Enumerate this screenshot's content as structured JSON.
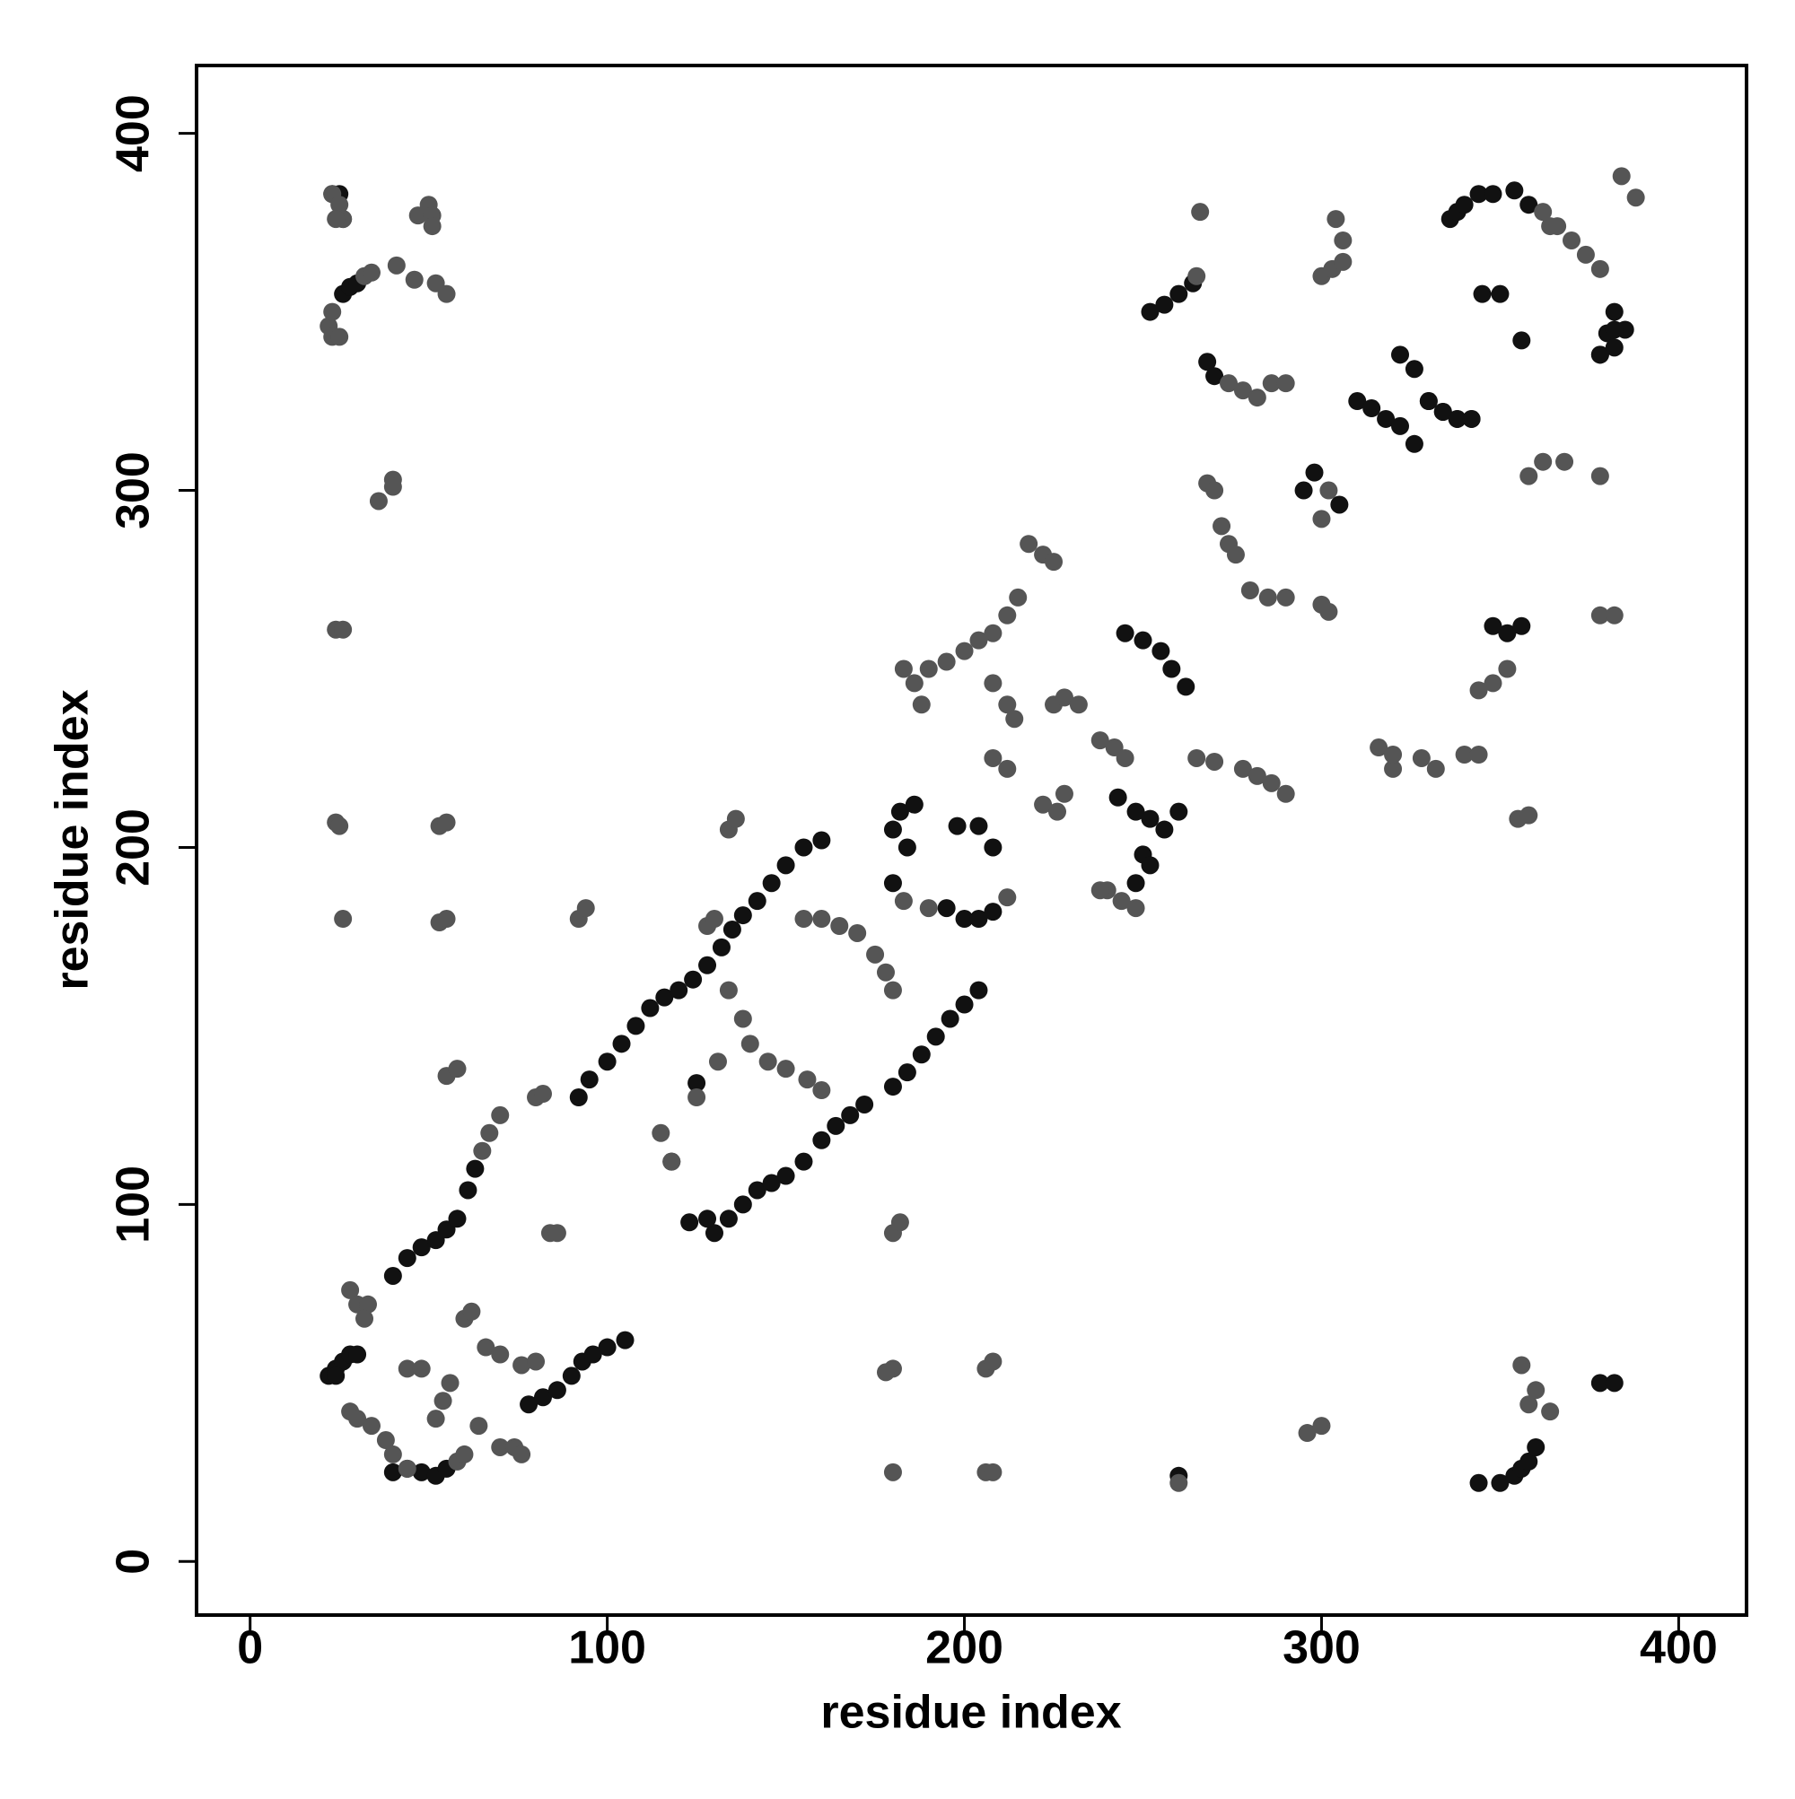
{
  "chart_data": {
    "type": "scatter",
    "x_label": "residue index",
    "y_label": "residue index",
    "xlim": [
      -15,
      419
    ],
    "ylim": [
      -15,
      419
    ],
    "xticks": [
      0,
      100,
      200,
      300,
      400
    ],
    "yticks": [
      0,
      100,
      200,
      300,
      400
    ],
    "series": [
      {
        "color": "#111111",
        "x": [
          22,
          24,
          26,
          28,
          30,
          40,
          44,
          48,
          52,
          55,
          58,
          61,
          63,
          78,
          82,
          86,
          90,
          93,
          96,
          100,
          105,
          92,
          95,
          100,
          104,
          108,
          112,
          116,
          120,
          124,
          128,
          132,
          135,
          138,
          142,
          146,
          150,
          155,
          160,
          130,
          134,
          138,
          142,
          146,
          150,
          155,
          160,
          164,
          168,
          172,
          180,
          184,
          188,
          192,
          196,
          200,
          204,
          180,
          182,
          186,
          184,
          180,
          208,
          204,
          198,
          195,
          200,
          204,
          208,
          243,
          248,
          252,
          256,
          260,
          250,
          252,
          248,
          245,
          250,
          255,
          258,
          262,
          252,
          256,
          260,
          264,
          268,
          270,
          295,
          298,
          305,
          310,
          314,
          318,
          322,
          326,
          330,
          334,
          338,
          342,
          322,
          326,
          330,
          334,
          338,
          342,
          348,
          352,
          356,
          336,
          338,
          340,
          344,
          348,
          354,
          358,
          378,
          380,
          382,
          378,
          382,
          385,
          345,
          350,
          356,
          344,
          350,
          354,
          356,
          358,
          360,
          378,
          382,
          23,
          25,
          26,
          24,
          26,
          28,
          30,
          40,
          44,
          48,
          52,
          55,
          118,
          123,
          128,
          125,
          260,
          382
        ],
        "y": [
          52,
          54,
          56,
          58,
          58,
          80,
          85,
          88,
          90,
          93,
          96,
          104,
          110,
          44,
          46,
          48,
          52,
          56,
          58,
          60,
          62,
          130,
          135,
          140,
          145,
          150,
          155,
          158,
          160,
          163,
          167,
          172,
          177,
          181,
          185,
          190,
          195,
          200,
          202,
          92,
          96,
          100,
          104,
          106,
          108,
          112,
          118,
          122,
          125,
          128,
          133,
          137,
          142,
          147,
          152,
          156,
          160,
          205,
          210,
          212,
          200,
          190,
          200,
          206,
          206,
          183,
          180,
          180,
          182,
          214,
          210,
          208,
          205,
          210,
          198,
          195,
          190,
          260,
          258,
          255,
          250,
          245,
          350,
          352,
          355,
          358,
          336,
          332,
          300,
          305,
          296,
          325,
          323,
          320,
          318,
          313,
          325,
          322,
          320,
          320,
          338,
          334,
          325,
          322,
          320,
          320,
          262,
          260,
          262,
          376,
          378,
          380,
          383,
          383,
          384,
          380,
          338,
          344,
          350,
          338,
          340,
          345,
          355,
          355,
          342,
          22,
          22,
          24,
          26,
          28,
          32,
          50,
          50,
          383,
          383,
          376,
          52,
          355,
          357,
          358,
          25,
          26,
          25,
          24,
          26,
          112,
          95,
          96,
          134,
          24,
          345
        ]
      },
      {
        "color": "#555555",
        "x": [
          23,
          25,
          26,
          24,
          22,
          23,
          25,
          23,
          32,
          34,
          41,
          46,
          52,
          55,
          47,
          50,
          51,
          51,
          40,
          40,
          36,
          24,
          26,
          24,
          25,
          26,
          53,
          55,
          53,
          55,
          65,
          67,
          70,
          115,
          118,
          125,
          131,
          134,
          138,
          140,
          145,
          150,
          156,
          160,
          155,
          160,
          165,
          170,
          175,
          178,
          180,
          183,
          190,
          212,
          186,
          183,
          188,
          190,
          195,
          200,
          204,
          208,
          212,
          215,
          218,
          222,
          225,
          208,
          212,
          214,
          208,
          212,
          222,
          226,
          228,
          225,
          228,
          232,
          238,
          242,
          245,
          270,
          265,
          240,
          238,
          248,
          244,
          266,
          274,
          278,
          282,
          286,
          290,
          265,
          268,
          270,
          272,
          274,
          276,
          280,
          285,
          290,
          302,
          300,
          278,
          282,
          286,
          290,
          300,
          302,
          300,
          303,
          306,
          304,
          306,
          364,
          344,
          348,
          352,
          340,
          344,
          332,
          328,
          316,
          320,
          320,
          362,
          366,
          370,
          374,
          378,
          358,
          362,
          368,
          378,
          378,
          382,
          355,
          358,
          384,
          388,
          128,
          130,
          134,
          136,
          92,
          94,
          55,
          58,
          80,
          82,
          84,
          86,
          358,
          360,
          356,
          364,
          296,
          300,
          260,
          206,
          208,
          180,
          206,
          208,
          180,
          178,
          180,
          182,
          28,
          30,
          34,
          38,
          40,
          44,
          58,
          60,
          70,
          74,
          76,
          64,
          44,
          48,
          52,
          54,
          56,
          60,
          62,
          66,
          70,
          76,
          80,
          28,
          30,
          33,
          32
        ],
        "y": [
          383,
          380,
          376,
          376,
          346,
          343,
          343,
          350,
          360,
          361,
          363,
          359,
          358,
          355,
          377,
          380,
          377,
          374,
          303,
          301,
          297,
          261,
          261,
          207,
          206,
          180,
          206,
          207,
          179,
          180,
          115,
          120,
          125,
          120,
          112,
          130,
          140,
          160,
          152,
          145,
          140,
          138,
          135,
          132,
          180,
          180,
          178,
          176,
          170,
          165,
          160,
          185,
          183,
          186,
          246,
          250,
          240,
          250,
          252,
          255,
          258,
          260,
          265,
          270,
          285,
          282,
          280,
          246,
          240,
          236,
          225,
          222,
          212,
          210,
          215,
          240,
          242,
          240,
          230,
          228,
          225,
          224,
          225,
          188,
          188,
          183,
          185,
          378,
          330,
          328,
          326,
          330,
          330,
          360,
          302,
          300,
          290,
          285,
          282,
          272,
          270,
          270,
          300,
          292,
          222,
          220,
          218,
          215,
          268,
          266,
          360,
          362,
          364,
          376,
          370,
          374,
          244,
          246,
          250,
          226,
          226,
          222,
          225,
          228,
          222,
          226,
          378,
          374,
          370,
          366,
          362,
          304,
          308,
          308,
          304,
          265,
          265,
          208,
          209,
          388,
          382,
          178,
          180,
          205,
          208,
          180,
          183,
          136,
          138,
          130,
          131,
          92,
          92,
          44,
          48,
          55,
          42,
          36,
          38,
          22,
          25,
          25,
          25,
          54,
          56,
          54,
          53,
          92,
          95,
          42,
          40,
          38,
          34,
          30,
          26,
          28,
          30,
          32,
          32,
          30,
          38,
          54,
          54,
          40,
          45,
          50,
          68,
          70,
          60,
          58,
          55,
          56,
          76,
          72,
          72,
          68
        ]
      }
    ]
  }
}
